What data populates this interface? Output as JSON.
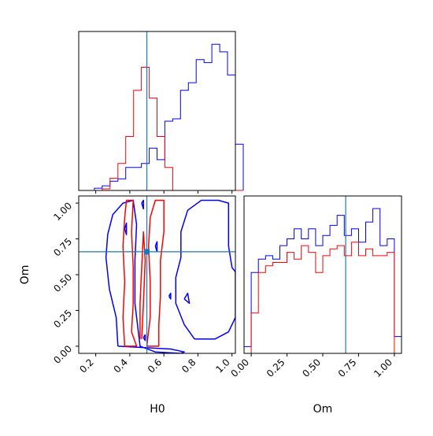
{
  "chart_data": {
    "type": "corner",
    "parameters": [
      "H0",
      "Om"
    ],
    "truth": {
      "H0": 0.5,
      "Om": 0.66
    },
    "colors": {
      "truth": "#1f77b4",
      "set_a": "#0000ff",
      "set_b": "#ff0000"
    },
    "panels": [
      {
        "id": "hist-H0",
        "type": "histogram",
        "xlim": [
          0.1,
          1.02
        ],
        "xticks": [
          0.2,
          0.4,
          0.6,
          0.8,
          1.0
        ],
        "yticks_shown": false,
        "series": [
          {
            "color": "#0000ff",
            "bin_start": 0.1,
            "bin_width": 0.046,
            "heights": [
              0.0,
              0.0,
              0.3,
              0.6,
              1.2,
              1.5,
              3.0,
              3.0,
              3.5,
              5.5,
              4.0,
              9.0,
              9.3,
              13.0,
              14.0,
              17.0,
              16.6,
              19.0,
              18.0,
              15.0,
              6.0
            ]
          },
          {
            "color": "#ff0000",
            "bin_start": 0.1,
            "bin_width": 0.046,
            "heights": [
              0.0,
              0.0,
              0.0,
              0.2,
              1.6,
              3.5,
              7.0,
              13.0,
              16.0,
              12.0,
              7.0,
              3.0,
              0.0,
              0.0,
              0.0,
              0.0,
              0.0,
              0.0,
              0.0,
              0.0,
              0.0
            ]
          }
        ]
      },
      {
        "id": "joint-H0-Om",
        "type": "contour",
        "xlabel": "H0",
        "ylabel": "Om",
        "xlim": [
          0.1,
          1.02
        ],
        "ylim": [
          -0.05,
          1.05
        ],
        "xticks": [
          0.2,
          0.4,
          0.6,
          0.8,
          1.0
        ],
        "yticks": [
          0.0,
          0.25,
          0.5,
          0.75,
          1.0
        ],
        "series": [
          {
            "color": "#0000ff",
            "contours": [
              [
                [
                  0.33,
                  0.0
                ],
                [
                  0.32,
                  0.2
                ],
                [
                  0.28,
                  0.4
                ],
                [
                  0.26,
                  0.62
                ],
                [
                  0.27,
                  0.78
                ],
                [
                  0.3,
                  0.92
                ],
                [
                  0.36,
                  1.0
                ],
                [
                  0.42,
                  1.02
                ],
                [
                  0.44,
                  0.85
                ],
                [
                  0.43,
                  0.6
                ],
                [
                  0.43,
                  0.3
                ],
                [
                  0.46,
                  0.0
                ],
                [
                  0.55,
                  -0.04
                ],
                [
                  0.7,
                  -0.05
                ],
                [
                  0.72,
                  -0.04
                ],
                [
                  0.64,
                  -0.02
                ],
                [
                  0.33,
                  0.0
                ]
              ],
              [
                [
                  0.78,
                  0.05
                ],
                [
                  0.72,
                  0.15
                ],
                [
                  0.67,
                  0.3
                ],
                [
                  0.67,
                  0.48
                ],
                [
                  0.7,
                  0.62
                ],
                [
                  0.7,
                  0.8
                ],
                [
                  0.74,
                  0.95
                ],
                [
                  0.82,
                  1.02
                ],
                [
                  0.92,
                  1.02
                ],
                [
                  0.98,
                  1.0
                ],
                [
                  0.98,
                  0.7
                ],
                [
                  1.0,
                  0.55
                ],
                [
                  1.02,
                  0.52
                ],
                [
                  1.02,
                  0.2
                ],
                [
                  0.98,
                  0.1
                ],
                [
                  0.9,
                  0.05
                ],
                [
                  0.78,
                  0.05
                ]
              ],
              [
                [
                  0.55,
                  0.7
                ],
                [
                  0.56,
                  0.73
                ],
                [
                  0.56,
                  0.66
                ],
                [
                  0.55,
                  0.7
                ]
              ],
              [
                [
                  0.63,
                  0.35
                ],
                [
                  0.64,
                  0.37
                ],
                [
                  0.64,
                  0.33
                ],
                [
                  0.63,
                  0.35
                ]
              ],
              [
                [
                  0.72,
                  0.33
                ],
                [
                  0.74,
                  0.37
                ],
                [
                  0.75,
                  0.3
                ],
                [
                  0.72,
                  0.33
                ]
              ],
              [
                [
                  0.37,
                  0.82
                ],
                [
                  0.38,
                  0.86
                ],
                [
                  0.38,
                  0.78
                ],
                [
                  0.37,
                  0.82
                ]
              ],
              [
                [
                  0.47,
                  1.0
                ],
                [
                  0.48,
                  1.02
                ],
                [
                  0.48,
                  0.96
                ],
                [
                  0.47,
                  1.0
                ]
              ],
              [
                [
                  0.48,
                  0.06
                ],
                [
                  0.49,
                  0.08
                ],
                [
                  0.49,
                  0.04
                ],
                [
                  0.48,
                  0.06
                ]
              ]
            ]
          },
          {
            "color": "#ff0000",
            "contours": [
              [
                [
                  0.37,
                  0.0
                ],
                [
                  0.36,
                  0.2
                ],
                [
                  0.37,
                  0.45
                ],
                [
                  0.36,
                  0.7
                ],
                [
                  0.37,
                  0.9
                ],
                [
                  0.38,
                  1.02
                ],
                [
                  0.42,
                  1.02
                ],
                [
                  0.41,
                  0.8
                ],
                [
                  0.42,
                  0.55
                ],
                [
                  0.42,
                  0.3
                ],
                [
                  0.41,
                  0.1
                ],
                [
                  0.44,
                  0.0
                ],
                [
                  0.37,
                  0.0
                ]
              ],
              [
                [
                  0.5,
                  0.0
                ],
                [
                  0.52,
                  0.2
                ],
                [
                  0.52,
                  0.45
                ],
                [
                  0.51,
                  0.7
                ],
                [
                  0.52,
                  0.9
                ],
                [
                  0.55,
                  1.02
                ],
                [
                  0.6,
                  1.02
                ],
                [
                  0.6,
                  0.8
                ],
                [
                  0.58,
                  0.6
                ],
                [
                  0.58,
                  0.35
                ],
                [
                  0.57,
                  0.15
                ],
                [
                  0.57,
                  0.0
                ],
                [
                  0.5,
                  0.0
                ]
              ],
              [
                [
                  0.46,
                  0.05
                ],
                [
                  0.46,
                  0.3
                ],
                [
                  0.47,
                  0.55
                ],
                [
                  0.48,
                  0.8
                ],
                [
                  0.49,
                  0.6
                ],
                [
                  0.48,
                  0.3
                ],
                [
                  0.47,
                  0.05
                ]
              ]
            ]
          }
        ]
      },
      {
        "id": "hist-Om",
        "type": "histogram",
        "xlabel": "Om",
        "xlim": [
          -0.05,
          1.05
        ],
        "xticks": [
          0.0,
          0.25,
          0.5,
          0.75,
          1.0
        ],
        "xtick_labels": [
          "0.00",
          "0.25",
          "0.50",
          "0.75",
          "1.00"
        ],
        "yticks_shown": false,
        "series": [
          {
            "color": "#0000ff",
            "bin_start": -0.05,
            "bin_width": 0.05,
            "heights": [
              1.0,
              12.0,
              14.0,
              14.5,
              14.0,
              16.0,
              17.0,
              18.5,
              17.0,
              18.5,
              16.0,
              17.5,
              19.0,
              20.5,
              17.5,
              18.5,
              16.5,
              19.5,
              21.5,
              16.0,
              17.0,
              2.5
            ]
          },
          {
            "color": "#ff0000",
            "bin_start": -0.05,
            "bin_width": 0.05,
            "heights": [
              0.0,
              6.0,
              12.0,
              13.0,
              13.5,
              13.5,
              15.0,
              14.0,
              16.0,
              15.0,
              12.0,
              14.5,
              15.5,
              16.0,
              14.5,
              16.5,
              14.5,
              15.5,
              14.5,
              14.5,
              15.0,
              0.0
            ]
          }
        ]
      }
    ]
  }
}
